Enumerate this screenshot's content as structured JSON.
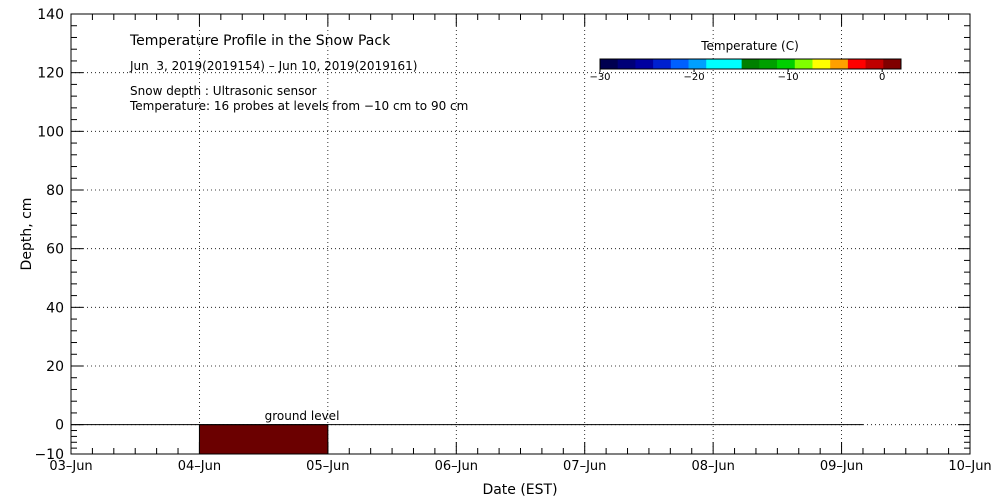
{
  "chart_data": {
    "type": "heatmap",
    "title": "Temperature Profile in the Snow Pack",
    "subtitle": "Jun  3, 2019(2019154) – Jun 10, 2019(2019161)",
    "notes": [
      "Snow depth : Ultrasonic sensor",
      "Temperature: 16 probes at levels from −10 cm to 90 cm"
    ],
    "xlabel": "Date (EST)",
    "ylabel": "Depth, cm",
    "xlim": [
      "2019-06-03",
      "2019-06-10"
    ],
    "ylim": [
      -10,
      140
    ],
    "x_ticks": [
      "03–Jun",
      "04–Jun",
      "05–Jun",
      "06–Jun",
      "07–Jun",
      "08–Jun",
      "09–Jun",
      "10–Jun"
    ],
    "y_ticks": [
      "−10",
      "0",
      "20",
      "40",
      "60",
      "80",
      "100",
      "120",
      "140"
    ],
    "y_tick_values": [
      -10,
      0,
      20,
      40,
      60,
      80,
      100,
      120,
      140
    ],
    "grid": true,
    "ground_level": {
      "label": "ground level",
      "depth": 0,
      "x_start": "2019-06-03T00:00",
      "x_end": "2019-06-09T04:00"
    },
    "data_blocks": [
      {
        "x_start": "2019-06-04T00:00",
        "x_end": "2019-06-05T00:00",
        "depth_from": -10,
        "depth_to": 0,
        "color": "#6b0000"
      }
    ],
    "colorbar": {
      "title": "Temperature (C)",
      "tick_labels": [
        "−30",
        "−20",
        "−10",
        "0"
      ],
      "tick_values": [
        -30,
        -20,
        -10,
        0
      ],
      "range": [
        -30,
        2
      ],
      "colors": [
        "#000050",
        "#000078",
        "#0000a0",
        "#0020d0",
        "#0060ff",
        "#00a0ff",
        "#00ffff",
        "#00ffff",
        "#008000",
        "#00a000",
        "#00d000",
        "#80ff00",
        "#ffff00",
        "#ffa000",
        "#ff0000",
        "#c00000",
        "#800000"
      ]
    }
  }
}
